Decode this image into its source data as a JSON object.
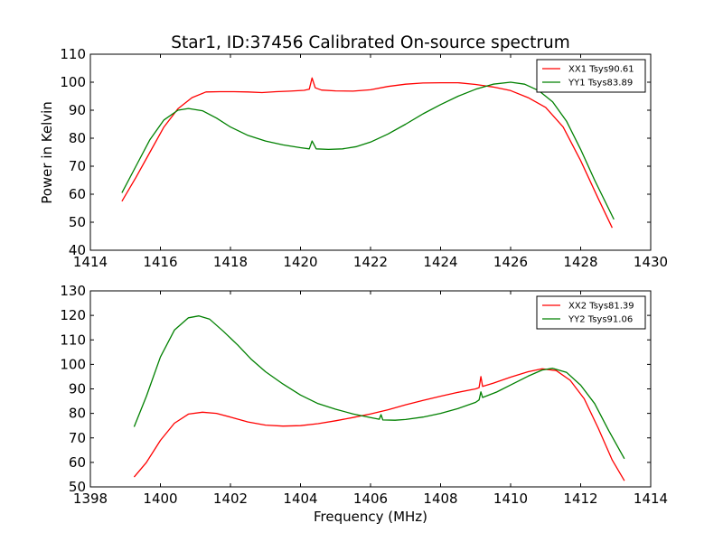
{
  "chart_data": [
    {
      "type": "line",
      "title": "Star1, ID:37456 Calibrated On-source spectrum",
      "xlabel": "",
      "ylabel": "Power in Kelvin",
      "xlim": [
        1414,
        1430
      ],
      "ylim": [
        40,
        110
      ],
      "xticks": [
        1414,
        1416,
        1418,
        1420,
        1422,
        1424,
        1426,
        1428,
        1430
      ],
      "yticks": [
        40,
        50,
        60,
        70,
        80,
        90,
        100,
        110
      ],
      "legend_position": "top-right",
      "series": [
        {
          "name": "XX1 Tsys90.61",
          "color": "#ff0000",
          "points": [
            [
              1414.9,
              57.5
            ],
            [
              1415.3,
              66
            ],
            [
              1415.7,
              75
            ],
            [
              1416.1,
              84
            ],
            [
              1416.5,
              90.5
            ],
            [
              1416.9,
              94.5
            ],
            [
              1417.3,
              96.5
            ],
            [
              1417.7,
              96.6
            ],
            [
              1418.1,
              96.6
            ],
            [
              1418.5,
              96.5
            ],
            [
              1418.9,
              96.3
            ],
            [
              1419.3,
              96.6
            ],
            [
              1419.7,
              96.8
            ],
            [
              1420.1,
              97.1
            ],
            [
              1420.25,
              97.5
            ],
            [
              1420.33,
              101.5
            ],
            [
              1420.42,
              98
            ],
            [
              1420.6,
              97.2
            ],
            [
              1421.0,
              96.9
            ],
            [
              1421.5,
              96.8
            ],
            [
              1422.0,
              97.3
            ],
            [
              1422.5,
              98.5
            ],
            [
              1423.0,
              99.3
            ],
            [
              1423.5,
              99.7
            ],
            [
              1424.0,
              99.8
            ],
            [
              1424.5,
              99.8
            ],
            [
              1425.0,
              99.2
            ],
            [
              1425.5,
              98.3
            ],
            [
              1426.0,
              97
            ],
            [
              1426.5,
              94.5
            ],
            [
              1427.0,
              91
            ],
            [
              1427.5,
              84
            ],
            [
              1428.0,
              72
            ],
            [
              1428.5,
              58.5
            ],
            [
              1428.9,
              48
            ]
          ]
        },
        {
          "name": "YY1 Tsys83.89",
          "color": "#008000",
          "points": [
            [
              1414.9,
              60.5
            ],
            [
              1415.3,
              70
            ],
            [
              1415.7,
              79.5
            ],
            [
              1416.1,
              86.5
            ],
            [
              1416.5,
              90
            ],
            [
              1416.8,
              90.6
            ],
            [
              1417.2,
              89.8
            ],
            [
              1417.6,
              87.2
            ],
            [
              1418.0,
              84
            ],
            [
              1418.5,
              81
            ],
            [
              1419.0,
              79
            ],
            [
              1419.5,
              77.6
            ],
            [
              1420.0,
              76.6
            ],
            [
              1420.25,
              76.2
            ],
            [
              1420.33,
              79
            ],
            [
              1420.45,
              76.2
            ],
            [
              1420.8,
              76
            ],
            [
              1421.2,
              76.2
            ],
            [
              1421.6,
              77
            ],
            [
              1422.0,
              78.6
            ],
            [
              1422.5,
              81.5
            ],
            [
              1423.0,
              85
            ],
            [
              1423.5,
              88.7
            ],
            [
              1424.0,
              92
            ],
            [
              1424.5,
              95
            ],
            [
              1425.0,
              97.5
            ],
            [
              1425.5,
              99.3
            ],
            [
              1426.0,
              100
            ],
            [
              1426.4,
              99.3
            ],
            [
              1426.8,
              97
            ],
            [
              1427.2,
              93
            ],
            [
              1427.6,
              86
            ],
            [
              1428.0,
              76
            ],
            [
              1428.4,
              65
            ],
            [
              1428.95,
              51
            ]
          ]
        }
      ]
    },
    {
      "type": "line",
      "title": "",
      "xlabel": "Frequency (MHz)",
      "ylabel": "",
      "xlim": [
        1398,
        1414
      ],
      "ylim": [
        50,
        130
      ],
      "xticks": [
        1398,
        1400,
        1402,
        1404,
        1406,
        1408,
        1410,
        1412,
        1414
      ],
      "yticks": [
        50,
        60,
        70,
        80,
        90,
        100,
        110,
        120,
        130
      ],
      "legend_position": "top-right",
      "series": [
        {
          "name": "XX2 Tsys81.39",
          "color": "#ff0000",
          "points": [
            [
              1399.25,
              54
            ],
            [
              1399.6,
              60
            ],
            [
              1400.0,
              69
            ],
            [
              1400.4,
              76
            ],
            [
              1400.8,
              79.7
            ],
            [
              1401.2,
              80.5
            ],
            [
              1401.6,
              80
            ],
            [
              1402.0,
              78.5
            ],
            [
              1402.5,
              76.5
            ],
            [
              1403.0,
              75.2
            ],
            [
              1403.5,
              74.8
            ],
            [
              1404.0,
              75
            ],
            [
              1404.5,
              75.8
            ],
            [
              1405.0,
              77
            ],
            [
              1405.5,
              78.3
            ],
            [
              1406.0,
              79.8
            ],
            [
              1406.5,
              81.5
            ],
            [
              1407.0,
              83.5
            ],
            [
              1407.5,
              85.3
            ],
            [
              1408.0,
              87
            ],
            [
              1408.5,
              88.6
            ],
            [
              1409.0,
              90
            ],
            [
              1409.1,
              90.5
            ],
            [
              1409.15,
              95
            ],
            [
              1409.2,
              91
            ],
            [
              1409.5,
              92.3
            ],
            [
              1410.0,
              94.8
            ],
            [
              1410.5,
              97
            ],
            [
              1410.9,
              98.2
            ],
            [
              1411.3,
              97.5
            ],
            [
              1411.7,
              93.5
            ],
            [
              1412.1,
              86
            ],
            [
              1412.5,
              74
            ],
            [
              1412.9,
              61
            ],
            [
              1413.25,
              52.5
            ]
          ]
        },
        {
          "name": "YY2 Tsys91.06",
          "color": "#008000",
          "points": [
            [
              1399.25,
              74.5
            ],
            [
              1399.6,
              87
            ],
            [
              1400.0,
              103
            ],
            [
              1400.4,
              114
            ],
            [
              1400.8,
              119
            ],
            [
              1401.1,
              119.8
            ],
            [
              1401.4,
              118.5
            ],
            [
              1401.8,
              113.5
            ],
            [
              1402.2,
              108
            ],
            [
              1402.6,
              102
            ],
            [
              1403.0,
              97
            ],
            [
              1403.5,
              92
            ],
            [
              1404.0,
              87.5
            ],
            [
              1404.5,
              84
            ],
            [
              1405.0,
              81.7
            ],
            [
              1405.5,
              79.8
            ],
            [
              1406.0,
              78.3
            ],
            [
              1406.25,
              77.6
            ],
            [
              1406.3,
              79.5
            ],
            [
              1406.35,
              77.3
            ],
            [
              1406.7,
              77.2
            ],
            [
              1407.0,
              77.5
            ],
            [
              1407.5,
              78.5
            ],
            [
              1408.0,
              80
            ],
            [
              1408.5,
              82
            ],
            [
              1409.0,
              84.5
            ],
            [
              1409.1,
              85.5
            ],
            [
              1409.15,
              88.8
            ],
            [
              1409.2,
              86.5
            ],
            [
              1409.6,
              88.7
            ],
            [
              1410.0,
              91.6
            ],
            [
              1410.5,
              95.2
            ],
            [
              1410.9,
              97.7
            ],
            [
              1411.2,
              98.4
            ],
            [
              1411.6,
              96.7
            ],
            [
              1412.0,
              91.5
            ],
            [
              1412.4,
              84
            ],
            [
              1412.8,
              73
            ],
            [
              1413.25,
              61.5
            ]
          ]
        }
      ]
    }
  ]
}
